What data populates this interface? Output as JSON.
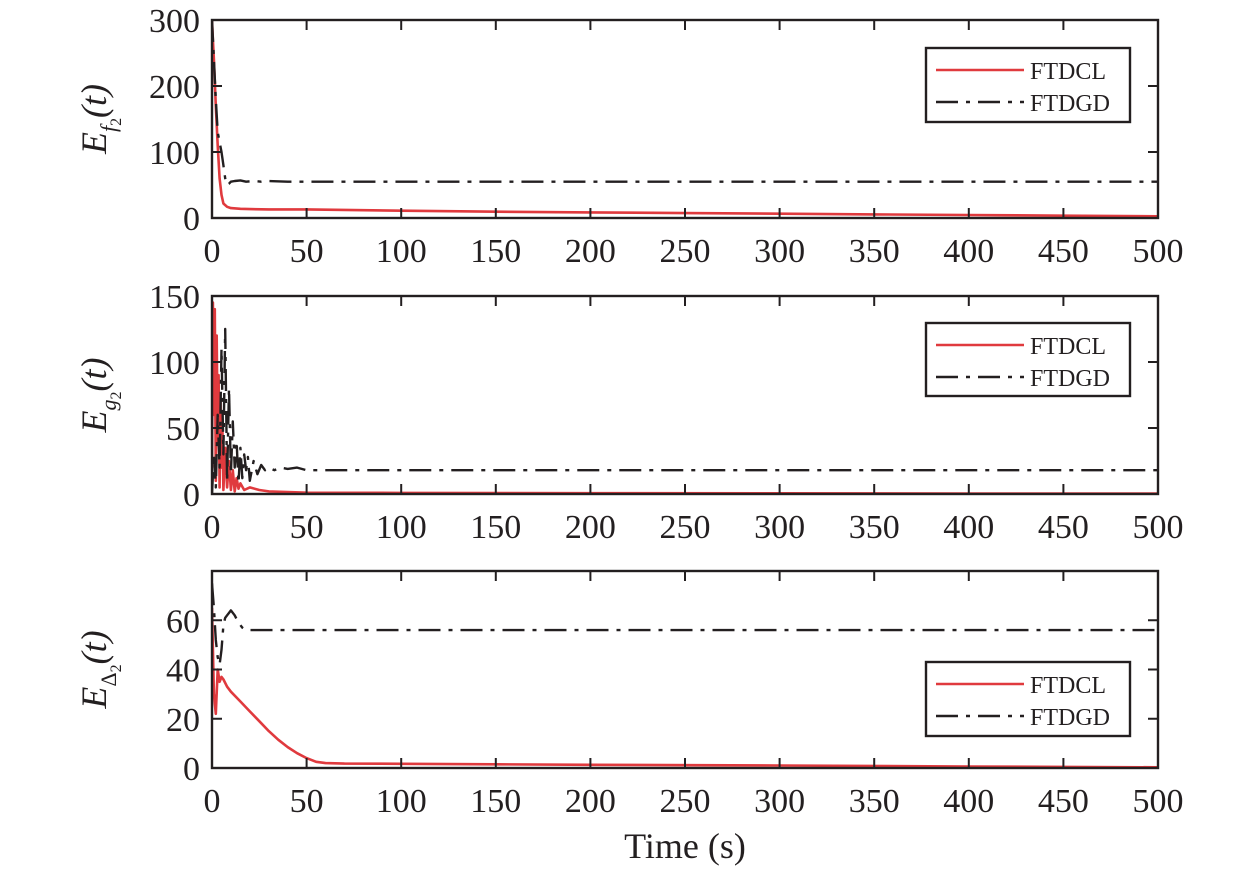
{
  "chart_data": [
    {
      "type": "line",
      "ylabel": {
        "main": "E",
        "sub_symbol": "f",
        "sub_index": "2",
        "arg": "(t)"
      },
      "xlim": [
        0,
        500
      ],
      "ylim": [
        0,
        300
      ],
      "xticks": [
        "0",
        "50",
        "100",
        "150",
        "200",
        "250",
        "300",
        "350",
        "400",
        "450",
        "500"
      ],
      "yticks": [
        "0",
        "100",
        "200",
        "300"
      ],
      "grid": false,
      "legend": {
        "position": "top-right"
      },
      "series": [
        {
          "name": "FTDCL",
          "color": "#e03a3e",
          "style": "solid",
          "x": [
            0,
            0.5,
            1,
            2,
            3,
            4,
            5,
            6,
            8,
            10,
            15,
            20,
            30,
            50,
            100,
            150,
            200,
            250,
            300,
            350,
            400,
            450,
            500
          ],
          "y": [
            300,
            270,
            240,
            170,
            110,
            60,
            35,
            22,
            17,
            15,
            14,
            13.5,
            13,
            13,
            11,
            9.5,
            8.5,
            7.5,
            6.5,
            5.5,
            4.5,
            3.5,
            2.5
          ]
        },
        {
          "name": "FTDGD",
          "color": "#231f20",
          "style": "dashdot",
          "x": [
            0,
            1,
            2,
            3,
            4,
            5,
            6,
            7,
            8,
            9,
            10,
            12,
            15,
            18,
            22,
            26,
            30,
            40,
            50,
            100,
            200,
            300,
            400,
            500
          ],
          "y": [
            300,
            240,
            180,
            130,
            115,
            100,
            80,
            60,
            50,
            52,
            55,
            56,
            57,
            55,
            56,
            55,
            56,
            55,
            55,
            55,
            55,
            55,
            55,
            55
          ]
        }
      ]
    },
    {
      "type": "line",
      "ylabel": {
        "main": "E",
        "sub_symbol": "g",
        "sub_index": "2",
        "arg": "(t)"
      },
      "xlim": [
        0,
        500
      ],
      "ylim": [
        0,
        150
      ],
      "xticks": [
        "0",
        "50",
        "100",
        "150",
        "200",
        "250",
        "300",
        "350",
        "400",
        "450",
        "500"
      ],
      "yticks": [
        "0",
        "50",
        "100",
        "150"
      ],
      "grid": false,
      "legend": {
        "position": "top-right"
      },
      "series": [
        {
          "name": "FTDCL",
          "color": "#e03a3e",
          "style": "solid",
          "x": [
            0,
            0.5,
            1,
            1.5,
            2,
            2.5,
            3,
            3.5,
            4,
            4.5,
            5,
            5.5,
            6,
            7,
            8,
            9,
            10,
            11,
            12,
            13,
            14,
            15,
            17,
            20,
            25,
            30,
            40,
            50,
            100,
            200,
            300,
            400,
            500
          ],
          "y": [
            20,
            145,
            60,
            140,
            10,
            120,
            40,
            90,
            5,
            70,
            20,
            50,
            3,
            35,
            5,
            25,
            3,
            18,
            2,
            12,
            4,
            8,
            3,
            5,
            3,
            2,
            1.5,
            1,
            0.8,
            0.6,
            0.5,
            0.4,
            0.3
          ]
        },
        {
          "name": "FTDGD",
          "color": "#231f20",
          "style": "dashdot",
          "x": [
            0,
            1,
            2,
            3,
            4,
            5,
            6,
            7,
            8,
            9,
            10,
            11,
            12,
            13,
            14,
            15,
            16,
            17,
            18,
            19,
            20,
            22,
            24,
            26,
            28,
            30,
            33,
            36,
            40,
            45,
            50,
            60,
            80,
            100,
            200,
            300,
            400,
            500
          ],
          "y": [
            0,
            30,
            5,
            60,
            20,
            110,
            30,
            125,
            10,
            80,
            15,
            55,
            20,
            40,
            8,
            35,
            12,
            30,
            18,
            28,
            10,
            25,
            15,
            22,
            18,
            20,
            18,
            20,
            19,
            20,
            18,
            18,
            18,
            18,
            18,
            18,
            18,
            18
          ]
        }
      ]
    },
    {
      "type": "line",
      "ylabel": {
        "main": "E",
        "sub_symbol": "Δ",
        "sub_index": "2",
        "arg": "(t)"
      },
      "xlim": [
        0,
        500
      ],
      "ylim": [
        0,
        80
      ],
      "xticks": [
        "0",
        "50",
        "100",
        "150",
        "200",
        "250",
        "300",
        "350",
        "400",
        "450",
        "500"
      ],
      "yticks": [
        "0",
        "20",
        "40",
        "60"
      ],
      "grid": false,
      "legend": {
        "position": "bottom-right"
      },
      "series": [
        {
          "name": "FTDCL",
          "color": "#e03a3e",
          "style": "solid",
          "x": [
            0,
            1,
            2,
            3,
            4,
            5,
            6,
            8,
            10,
            15,
            20,
            25,
            30,
            35,
            40,
            45,
            50,
            55,
            60,
            70,
            100,
            150,
            200,
            300,
            400,
            500
          ],
          "y": [
            65,
            30,
            22,
            40,
            35,
            37,
            36,
            33,
            31,
            27,
            23,
            19,
            15,
            11.5,
            8.5,
            6,
            4,
            2.5,
            2,
            1.8,
            1.7,
            1.5,
            1.3,
            1,
            0.6,
            0.3
          ]
        },
        {
          "name": "FTDGD",
          "color": "#231f20",
          "style": "dashdot",
          "x": [
            0,
            1,
            2,
            3,
            4,
            5,
            6,
            7,
            8,
            9,
            10,
            12,
            14,
            16,
            18,
            20,
            25,
            30,
            40,
            50,
            100,
            200,
            300,
            400,
            500
          ],
          "y": [
            75,
            65,
            52,
            45,
            42,
            48,
            58,
            61,
            62,
            63,
            64,
            62,
            59,
            57,
            56,
            56,
            56,
            56,
            56,
            56,
            56,
            56,
            56,
            56,
            56
          ]
        }
      ]
    }
  ],
  "xlabel": "Time (s)"
}
